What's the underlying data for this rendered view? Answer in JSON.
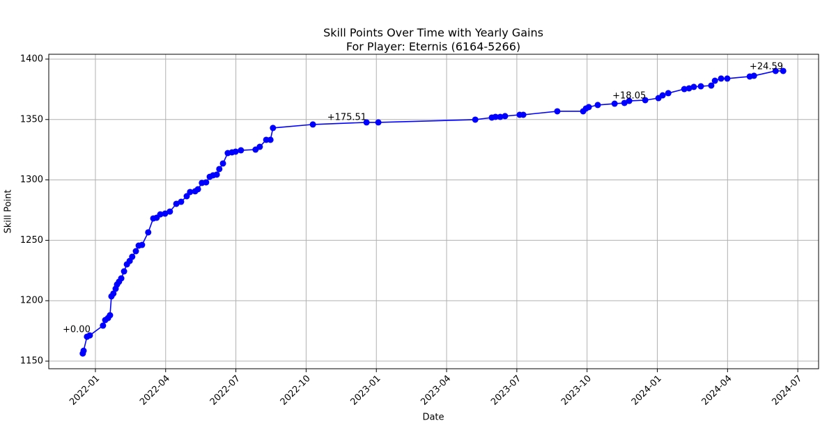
{
  "chart_data": {
    "type": "line",
    "title": "Skill Points Over Time with Yearly Gains",
    "subtitle": "For Player: Eternis (6164-5266)",
    "x_label": "Date",
    "y_label": "Skill Point",
    "grid": true,
    "xlim": [
      2021.834,
      2024.574
    ],
    "ylim": [
      1143.7,
      1404.0
    ],
    "xticks": [
      {
        "value": 2022.0,
        "label": "2022-01"
      },
      {
        "value": 2022.25,
        "label": "2022-04"
      },
      {
        "value": 2022.5,
        "label": "2022-07"
      },
      {
        "value": 2022.75,
        "label": "2022-10"
      },
      {
        "value": 2023.0,
        "label": "2023-01"
      },
      {
        "value": 2023.25,
        "label": "2023-04"
      },
      {
        "value": 2023.5,
        "label": "2023-07"
      },
      {
        "value": 2023.75,
        "label": "2023-10"
      },
      {
        "value": 2024.0,
        "label": "2024-01"
      },
      {
        "value": 2024.25,
        "label": "2024-04"
      },
      {
        "value": 2024.5,
        "label": "2024-07"
      }
    ],
    "yticks": [
      1150,
      1200,
      1250,
      1300,
      1350,
      1400
    ],
    "x": [
      2021.955,
      2021.958,
      2021.97,
      2021.98,
      2022.027,
      2022.035,
      2022.045,
      2022.052,
      2022.057,
      2022.064,
      2022.072,
      2022.077,
      2022.084,
      2022.092,
      2022.102,
      2022.112,
      2022.122,
      2022.131,
      2022.144,
      2022.154,
      2022.166,
      2022.188,
      2022.206,
      2022.218,
      2022.231,
      2022.248,
      2022.265,
      2022.288,
      2022.305,
      2022.325,
      2022.337,
      2022.355,
      2022.365,
      2022.379,
      2022.394,
      2022.407,
      2022.419,
      2022.432,
      2022.441,
      2022.454,
      2022.471,
      2022.486,
      2022.499,
      2022.518,
      2022.57,
      2022.585,
      2022.608,
      2022.623,
      2022.632,
      2022.774,
      2022.965,
      2023.007,
      2023.352,
      2023.411,
      2023.424,
      2023.441,
      2023.458,
      2023.51,
      2023.523,
      2023.644,
      2023.736,
      2023.746,
      2023.756,
      2023.788,
      2023.848,
      2023.883,
      2023.9,
      2023.957,
      2024.004,
      2024.019,
      2024.039,
      2024.096,
      2024.113,
      2024.13,
      2024.155,
      2024.192,
      2024.205,
      2024.227,
      2024.249,
      2024.329,
      2024.344,
      2024.421,
      2024.448
    ],
    "series": [
      {
        "name": "Skill Point",
        "color": "#0000ff",
        "values": [
          1156.3,
          1158.6,
          1170.2,
          1171.3,
          1179.4,
          1184.0,
          1185.7,
          1188.0,
          1203.6,
          1205.9,
          1209.9,
          1213.4,
          1215.7,
          1218.5,
          1224.3,
          1230.1,
          1232.9,
          1236.4,
          1241.0,
          1245.6,
          1246.2,
          1256.6,
          1268.1,
          1268.7,
          1271.5,
          1272.1,
          1273.8,
          1280.2,
          1281.9,
          1286.5,
          1290.0,
          1290.6,
          1292.3,
          1297.5,
          1298.0,
          1302.6,
          1303.8,
          1304.4,
          1309.0,
          1313.6,
          1322.2,
          1322.8,
          1323.4,
          1324.5,
          1325.1,
          1327.4,
          1333.2,
          1333.2,
          1343.0,
          1345.9,
          1347.6,
          1347.6,
          1349.9,
          1351.6,
          1352.2,
          1352.2,
          1352.8,
          1353.9,
          1353.9,
          1356.8,
          1356.8,
          1359.1,
          1360.3,
          1362.0,
          1363.1,
          1363.7,
          1365.4,
          1366.0,
          1367.7,
          1370.0,
          1371.8,
          1375.2,
          1375.8,
          1377.0,
          1377.5,
          1378.1,
          1382.1,
          1383.9,
          1383.9,
          1385.6,
          1386.2,
          1390.2,
          1390.2
        ]
      }
    ],
    "annotations": [
      {
        "text": "+0.00",
        "x": 2021.933,
        "y": 1175.9
      },
      {
        "text": "+175.51",
        "x": 2022.895,
        "y": 1351.6
      },
      {
        "text": "+18.05",
        "x": 2023.9,
        "y": 1369.5
      },
      {
        "text": "+24.59",
        "x": 2024.388,
        "y": 1393.7
      }
    ]
  }
}
